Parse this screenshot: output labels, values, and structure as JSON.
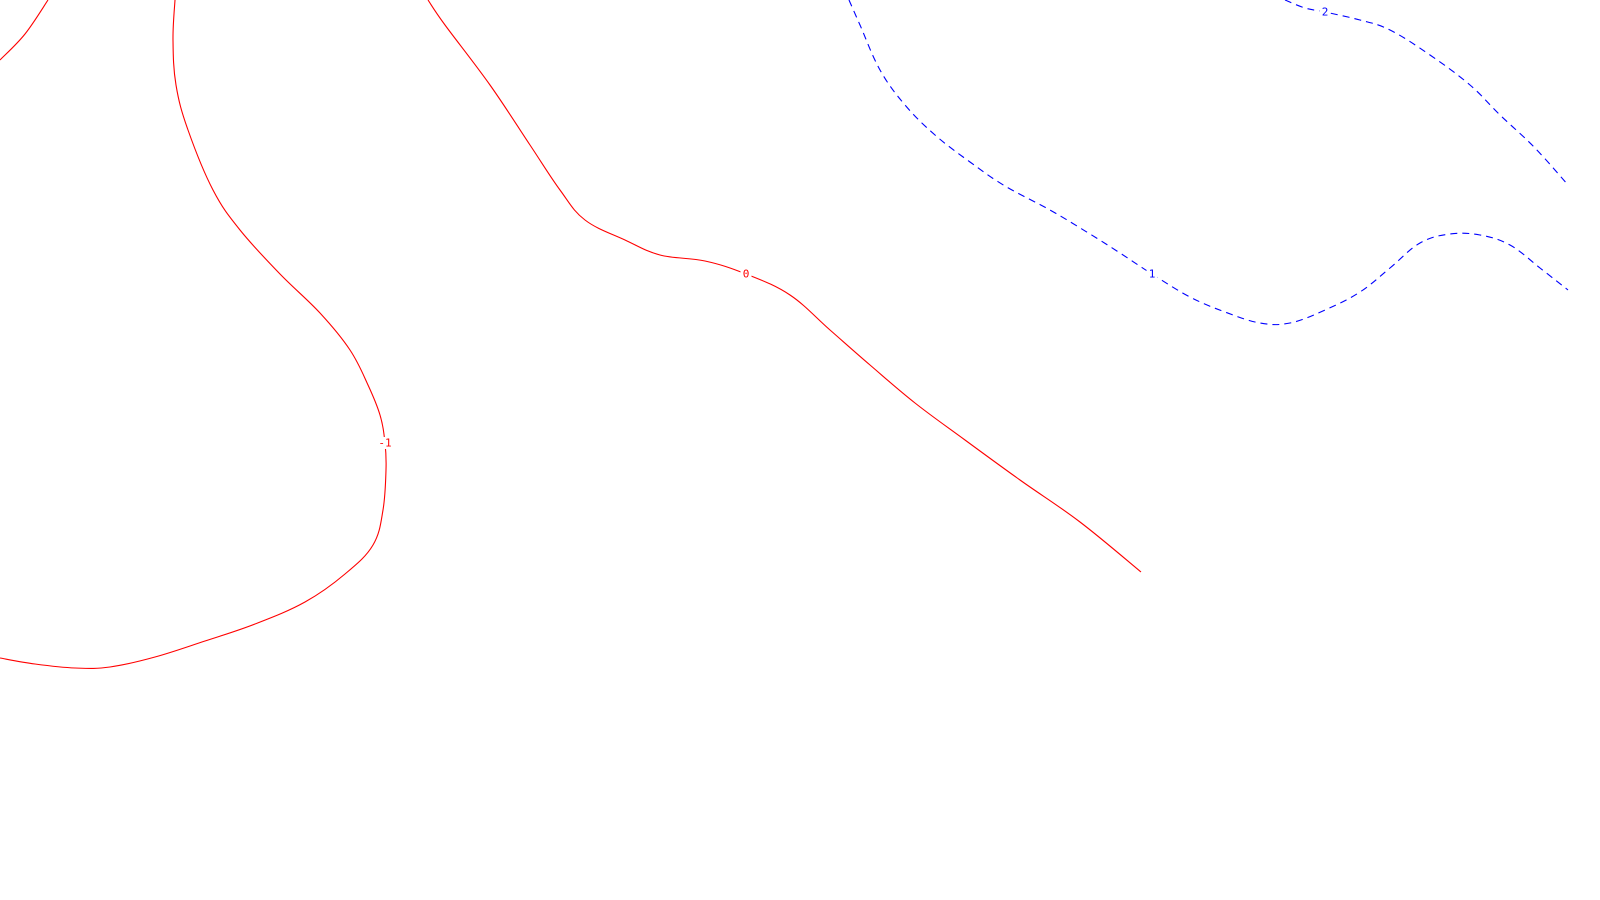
{
  "chart_data": {
    "type": "contour",
    "title": "",
    "xlabel": "",
    "ylabel": "",
    "grid": false,
    "legend": "none",
    "styles": {
      "negative": {
        "color": "#ff0000",
        "dash": "solid"
      },
      "positive": {
        "color": "#0000ff",
        "dash": "dashed"
      }
    },
    "series": [
      {
        "level": -1,
        "label": "-1",
        "sign": "negative",
        "segments": [
          {
            "points": [
              [
                0,
                60
              ],
              [
                25,
                34
              ],
              [
                48,
                0
              ]
            ]
          },
          {
            "points": [
              [
                175,
                0
              ],
              [
                173,
                40
              ],
              [
                176,
                85
              ],
              [
                188,
                130
              ],
              [
                213,
                190
              ],
              [
                240,
                230
              ],
              [
                280,
                274
              ],
              [
                320,
                313
              ],
              [
                350,
                350
              ],
              [
                368,
                385
              ],
              [
                380,
                415
              ],
              [
                385,
                443
              ],
              [
                386,
                470
              ],
              [
                383,
                510
              ],
              [
                373,
                545
              ],
              [
                345,
                574
              ],
              [
                305,
                602
              ],
              [
                255,
                624
              ],
              [
                205,
                641
              ],
              [
                155,
                657
              ],
              [
                110,
                667
              ],
              [
                75,
                668
              ],
              [
                35,
                664
              ],
              [
                0,
                658
              ]
            ]
          }
        ],
        "label_at": [
          385,
          443
        ]
      },
      {
        "level": 0,
        "label": "0",
        "sign": "negative",
        "segments": [
          {
            "points": [
              [
                428,
                0
              ],
              [
                445,
                25
              ],
              [
                490,
                85
              ],
              [
                530,
                145
              ],
              [
                560,
                190
              ],
              [
                585,
                220
              ],
              [
                625,
                240
              ],
              [
                660,
                255
              ],
              [
                705,
                261
              ],
              [
                746,
                274
              ],
              [
                790,
                295
              ],
              [
                830,
                330
              ],
              [
                870,
                365
              ],
              [
                915,
                403
              ],
              [
                965,
                440
              ],
              [
                1020,
                480
              ],
              [
                1080,
                522
              ],
              [
                1141,
                572
              ]
            ]
          }
        ],
        "label_at": [
          746,
          274
        ]
      },
      {
        "level": 1,
        "label": "1",
        "sign": "positive",
        "segments": [
          {
            "points": [
              [
                849,
                0
              ],
              [
                860,
                25
              ],
              [
                880,
                70
              ],
              [
                905,
                105
              ],
              [
                935,
                135
              ],
              [
                970,
                162
              ],
              [
                1005,
                186
              ],
              [
                1050,
                210
              ],
              [
                1090,
                234
              ],
              [
                1120,
                253
              ],
              [
                1152,
                274
              ],
              [
                1190,
                297
              ],
              [
                1225,
                312
              ],
              [
                1260,
                323
              ],
              [
                1290,
                323
              ],
              [
                1325,
                310
              ],
              [
                1360,
                292
              ],
              [
                1390,
                268
              ],
              [
                1420,
                243
              ],
              [
                1450,
                234
              ],
              [
                1480,
                235
              ],
              [
                1510,
                245
              ],
              [
                1540,
                268
              ],
              [
                1568,
                290
              ]
            ]
          }
        ],
        "label_at": [
          1152,
          274
        ]
      },
      {
        "level": 2,
        "label": "2",
        "sign": "positive",
        "segments": [
          {
            "points": [
              [
                1285,
                0
              ],
              [
                1305,
                8
              ],
              [
                1325,
                12
              ],
              [
                1360,
                20
              ],
              [
                1390,
                30
              ],
              [
                1430,
                55
              ],
              [
                1470,
                85
              ],
              [
                1500,
                115
              ],
              [
                1535,
                148
              ],
              [
                1568,
                185
              ]
            ]
          }
        ],
        "label_at": [
          1325,
          12
        ]
      }
    ]
  }
}
